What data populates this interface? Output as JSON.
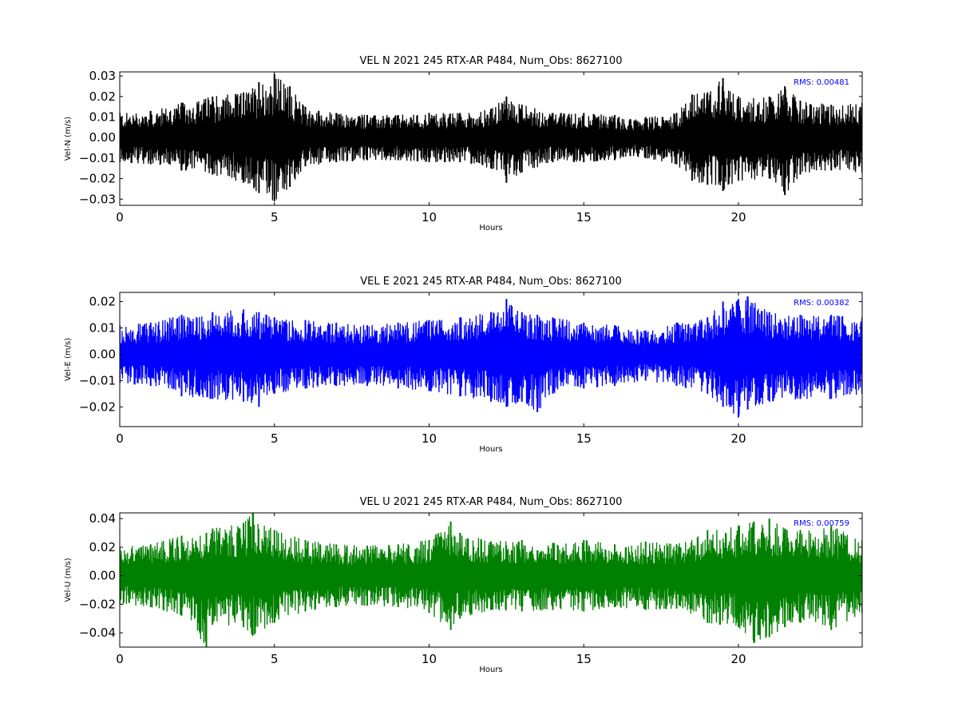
{
  "colors": {
    "north": "#000000",
    "east": "#0000ff",
    "up": "#008000",
    "rms_text": "#0000ff"
  },
  "chart_data": [
    {
      "type": "line",
      "title": "VEL N 2021 245 RTX-AR  P484, Num_Obs: 8627100",
      "xlabel": "Hours",
      "ylabel": "Vel-N (m/s)",
      "xlim": [
        0,
        24
      ],
      "ylim": [
        -0.033,
        0.032
      ],
      "xticks": [
        0,
        5,
        10,
        15,
        20
      ],
      "xtick_labels": [
        "0",
        "5",
        "10",
        "15",
        "20"
      ],
      "yticks": [
        -0.03,
        -0.02,
        -0.01,
        0.0,
        0.01,
        0.02,
        0.03
      ],
      "ytick_labels": [
        "−0.03",
        "−0.02",
        "−0.01",
        "0.00",
        "0.01",
        "0.02",
        "0.03"
      ],
      "rms_label": "RMS:  0.00481",
      "series": [
        {
          "color": "#000000",
          "envelope_hours": [
            0,
            1,
            2,
            3,
            4,
            4.5,
            5,
            5.5,
            6,
            7,
            8,
            9,
            10,
            11,
            12,
            12.5,
            13,
            14,
            15,
            16,
            16.5,
            17,
            18,
            18.5,
            19,
            19.5,
            20,
            21,
            21.5,
            22,
            23,
            24
          ],
          "envelope_upper": [
            0.012,
            0.013,
            0.017,
            0.02,
            0.022,
            0.027,
            0.031,
            0.025,
            0.015,
            0.012,
            0.011,
            0.011,
            0.012,
            0.012,
            0.014,
            0.02,
            0.016,
            0.012,
            0.012,
            0.011,
            0.009,
            0.01,
            0.012,
            0.021,
            0.022,
            0.029,
            0.02,
            0.02,
            0.025,
            0.018,
            0.016,
            0.017
          ],
          "envelope_lower": [
            -0.012,
            -0.013,
            -0.016,
            -0.018,
            -0.022,
            -0.027,
            -0.031,
            -0.024,
            -0.014,
            -0.012,
            -0.011,
            -0.011,
            -0.012,
            -0.012,
            -0.015,
            -0.022,
            -0.017,
            -0.012,
            -0.012,
            -0.011,
            -0.009,
            -0.01,
            -0.013,
            -0.021,
            -0.023,
            -0.026,
            -0.021,
            -0.02,
            -0.028,
            -0.018,
            -0.016,
            -0.017
          ]
        }
      ]
    },
    {
      "type": "line",
      "title": "VEL E 2021 245 RTX-AR  P484, Num_Obs: 8627100",
      "xlabel": "Hours",
      "ylabel": "Vel-E (m/s)",
      "xlim": [
        0,
        24
      ],
      "ylim": [
        -0.0275,
        0.0235
      ],
      "xticks": [
        0,
        5,
        10,
        15,
        20
      ],
      "xtick_labels": [
        "0",
        "5",
        "10",
        "15",
        "20"
      ],
      "yticks": [
        -0.02,
        -0.01,
        0.0,
        0.01,
        0.02
      ],
      "ytick_labels": [
        "−0.02",
        "−0.01",
        "0.00",
        "0.01",
        "0.02"
      ],
      "rms_label": "RMS:  0.00382",
      "series": [
        {
          "color": "#0000ff",
          "envelope_hours": [
            0,
            1,
            2,
            3,
            4,
            4.5,
            5,
            6,
            7,
            8,
            9,
            10,
            11,
            12,
            12.5,
            13,
            13.5,
            14,
            15,
            16,
            17,
            18,
            19,
            19.5,
            20,
            20.3,
            21,
            22,
            23,
            24
          ],
          "envelope_upper": [
            0.011,
            0.012,
            0.015,
            0.016,
            0.017,
            0.016,
            0.014,
            0.013,
            0.012,
            0.011,
            0.012,
            0.013,
            0.014,
            0.016,
            0.021,
            0.016,
            0.015,
            0.014,
            0.012,
            0.011,
            0.009,
            0.012,
            0.014,
            0.02,
            0.021,
            0.022,
            0.016,
            0.015,
            0.015,
            0.014
          ],
          "envelope_lower": [
            -0.011,
            -0.012,
            -0.016,
            -0.017,
            -0.018,
            -0.02,
            -0.015,
            -0.013,
            -0.012,
            -0.012,
            -0.013,
            -0.014,
            -0.016,
            -0.018,
            -0.02,
            -0.018,
            -0.022,
            -0.015,
            -0.013,
            -0.012,
            -0.01,
            -0.012,
            -0.015,
            -0.02,
            -0.024,
            -0.021,
            -0.018,
            -0.017,
            -0.017,
            -0.015
          ]
        }
      ]
    },
    {
      "type": "line",
      "title": "VEL U 2021 245 RTX-AR  P484, Num_Obs: 8627100",
      "xlabel": "Hours",
      "ylabel": "Vel-U (m/s)",
      "xlim": [
        0,
        24
      ],
      "ylim": [
        -0.05,
        0.044
      ],
      "xticks": [
        0,
        5,
        10,
        15,
        20
      ],
      "xtick_labels": [
        "0",
        "5",
        "10",
        "15",
        "20"
      ],
      "yticks": [
        -0.04,
        -0.02,
        0.0,
        0.02,
        0.04
      ],
      "ytick_labels": [
        "−0.04",
        "−0.02",
        "0.00",
        "0.02",
        "0.04"
      ],
      "rms_label": "RMS:  0.00759",
      "series": [
        {
          "color": "#008000",
          "envelope_hours": [
            0,
            1,
            2,
            2.8,
            3,
            4,
            4.3,
            5,
            6,
            7,
            8,
            9,
            10,
            10.7,
            11,
            12,
            13,
            14,
            15,
            16,
            17,
            18,
            19,
            20,
            20.5,
            21,
            21.5,
            22,
            23,
            24
          ],
          "envelope_upper": [
            0.02,
            0.022,
            0.028,
            0.03,
            0.033,
            0.037,
            0.044,
            0.032,
            0.025,
            0.022,
            0.021,
            0.022,
            0.025,
            0.038,
            0.03,
            0.024,
            0.025,
            0.023,
            0.025,
            0.022,
            0.024,
            0.022,
            0.032,
            0.035,
            0.038,
            0.04,
            0.033,
            0.032,
            0.035,
            0.025
          ],
          "envelope_lower": [
            -0.02,
            -0.022,
            -0.028,
            -0.05,
            -0.034,
            -0.036,
            -0.042,
            -0.033,
            -0.025,
            -0.022,
            -0.021,
            -0.022,
            -0.026,
            -0.038,
            -0.03,
            -0.024,
            -0.025,
            -0.024,
            -0.025,
            -0.022,
            -0.024,
            -0.023,
            -0.033,
            -0.036,
            -0.047,
            -0.043,
            -0.036,
            -0.033,
            -0.038,
            -0.026
          ]
        }
      ]
    }
  ]
}
